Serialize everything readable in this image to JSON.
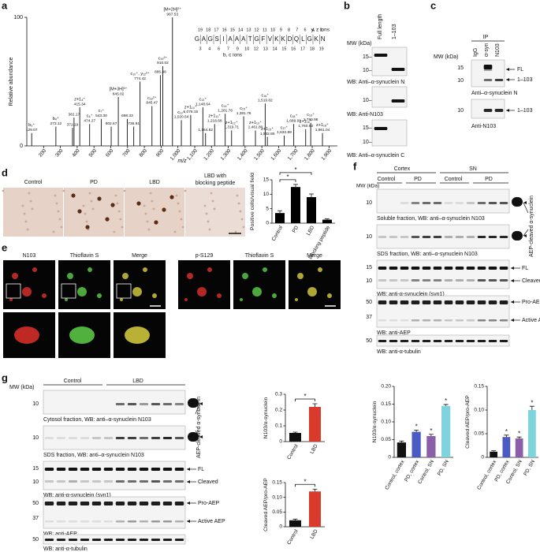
{
  "panel_labels": [
    "a",
    "b",
    "c",
    "d",
    "e",
    "f",
    "g"
  ],
  "a": {
    "ylabel": "Relative abundance",
    "xlabel": "m/z",
    "xlim": [
      100,
      1950
    ],
    "ylim": [
      0,
      100
    ],
    "yticks": [
      0,
      100
    ],
    "xticks": [
      200,
      300,
      400,
      500,
      600,
      700,
      800,
      900,
      {
        "value": 1000,
        "label": "1,000"
      },
      {
        "value": 1100,
        "label": "1,100"
      },
      {
        "value": 1200,
        "label": "1,200"
      },
      {
        "value": 1300,
        "label": "1,300"
      },
      {
        "value": 1400,
        "label": "1,400"
      },
      {
        "value": 1500,
        "label": "1,500"
      },
      {
        "value": 1600,
        "label": "1,600"
      },
      {
        "value": 1700,
        "label": "1,700"
      },
      {
        "value": 1800,
        "label": "1,800"
      },
      {
        "value": 1900,
        "label": "1,900"
      }
    ],
    "peaks": [
      {
        "mz": {
          "value": 129.07,
          "label": "129.07"
        },
        "abundance": 10,
        "ion": "b₃⁺"
      },
      {
        "mz": {
          "value": 273.12,
          "label": "273.12"
        },
        "abundance": 15,
        "ion": "b₄⁺"
      },
      {
        "mz": {
          "value": 372.19,
          "label": "372.19"
        },
        "abundance": 14
      },
      {
        "mz": {
          "value": 381.17,
          "label": "381.17"
        },
        "abundance": 22
      },
      {
        "mz": {
          "value": 415.34,
          "label": "415.34"
        },
        "abundance": 30,
        "ion": "z+1₄⁺"
      },
      {
        "mz": {
          "value": 474.27,
          "label": "474.27"
        },
        "abundance": 17,
        "ion": "c₆⁺"
      },
      {
        "mz": {
          "value": 543.3,
          "label": "543.30"
        },
        "abundance": 21,
        "ion": "c₇⁺"
      },
      {
        "mz": {
          "value": 602.67,
          "label": "602.67"
        },
        "abundance": 15
      },
      {
        "mz": {
          "value": 645.02,
          "label": "645.02"
        },
        "abundance": 38,
        "ion": "[M+3H]³⁺"
      },
      {
        "mz": {
          "value": 698.33,
          "label": "698.33"
        },
        "abundance": 21
      },
      {
        "mz": {
          "value": 736.91,
          "label": "736.91"
        },
        "abundance": 15
      },
      {
        "mz": {
          "value": 774.42,
          "label": "774.42"
        },
        "abundance": 50,
        "ion": "c₁₀⁺, y₁₂²⁺"
      },
      {
        "mz": {
          "value": 845.47,
          "label": "845.47"
        },
        "abundance": 31,
        "ion": "c₁₈²⁺"
      },
      {
        "mz": {
          "value": 895.48,
          "label": "895.48"
        },
        "abundance": 55
      },
      {
        "mz": {
          "value": 910.02,
          "label": "910.02"
        },
        "abundance": 62,
        "ion": "c₁₉²⁺"
      },
      {
        "mz": {
          "value": 967.53,
          "label": "967.53"
        },
        "abundance": 100,
        "ion": "[M+2H]²⁺"
      },
      {
        "mz": {
          "value": 1020.54,
          "label": "1,020.54"
        },
        "abundance": 20,
        "ion": "c₁₂⁺"
      },
      {
        "mz": {
          "value": 1076.15,
          "label": "1,076.15"
        },
        "abundance": 24,
        "ion": "z+1₁₀⁺"
      },
      {
        "mz": {
          "value": 1148.64,
          "label": "1,148.64"
        },
        "abundance": 30,
        "ion": "c₁₃⁺"
      },
      {
        "mz": {
          "value": 1164.62,
          "label": "1,164.62"
        },
        "abundance": 10
      },
      {
        "mz": {
          "value": 1218.68,
          "label": "1,218.68"
        },
        "abundance": 17,
        "ion": "z+1₁₁⁺"
      },
      {
        "mz": {
          "value": 1281.76,
          "label": "1,281.76"
        },
        "abundance": 25,
        "ion": "c₁₄⁺"
      },
      {
        "mz": {
          "value": 1319.71,
          "label": "1,319.71"
        },
        "abundance": 12,
        "ion": "z+1₁₂⁺"
      },
      {
        "mz": {
          "value": 1391.76,
          "label": "1,391.76"
        },
        "abundance": 23,
        "ion": "c₁₅⁺"
      },
      {
        "mz": {
          "value": 1461.8,
          "label": "1,461.80"
        },
        "abundance": 12,
        "ion": "z+1₁₃⁺"
      },
      {
        "mz": {
          "value": 1519.82,
          "label": "1,519.82"
        },
        "abundance": 33,
        "ion": "c₁₆⁺"
      },
      {
        "mz": {
          "value": 1532.86,
          "label": "1,532.86"
        },
        "abundance": 7,
        "ion": "z+1₁₅⁺"
      },
      {
        "mz": {
          "value": 1632.89,
          "label": "1,632.89"
        },
        "abundance": 8,
        "ion": "c₁₇⁺"
      },
      {
        "mz": {
          "value": 1689.91,
          "label": "1,689.91"
        },
        "abundance": 17,
        "ion": "c₁₈⁺"
      },
      {
        "mz": {
          "value": 1760.93,
          "label": "1,760.93"
        },
        "abundance": 13,
        "ion": "z+1₁₆⁺"
      },
      {
        "mz": {
          "value": 1790.98,
          "label": "1,790.98"
        },
        "abundance": 18,
        "ion": "c₁₉⁺"
      },
      {
        "mz": {
          "value": 1861.04,
          "label": "1,861.04"
        },
        "abundance": 10,
        "ion": "z+1₁₈⁺"
      }
    ],
    "sequence": {
      "top_numbers": [
        "19",
        "18",
        "17",
        "16",
        "15",
        "14",
        "13",
        "12",
        "11",
        "10",
        "9",
        "8",
        "7",
        "6",
        "4",
        "1"
      ],
      "residues": [
        "G",
        "A",
        "G",
        "S",
        "I",
        "A",
        "A",
        "A",
        "T",
        "G",
        "F",
        "V",
        "K",
        "K",
        "D",
        "Q",
        "L",
        "G",
        "K",
        "N"
      ],
      "bottom_numbers": [
        "3",
        "4",
        "6",
        "7",
        "9",
        "10",
        "12",
        "13",
        "14",
        "15",
        "16",
        "17",
        "18",
        "19"
      ],
      "top_label": "y, z ions",
      "bottom_label": "b, c ions"
    }
  },
  "b": {
    "mw": "MW (kDa)",
    "lanes": [
      "Full length",
      "1–103"
    ],
    "markers": [
      "15–",
      "10–",
      "10–",
      "15–",
      "10–"
    ],
    "captions": [
      "WB: Anti–α-synuclein N",
      "WB: Anti-N103",
      "WB: Anti–α-synuclein C"
    ]
  },
  "c": {
    "ip": "IP",
    "lanes": [
      "IgG",
      "α-syn",
      "N103"
    ],
    "mw": "MW (kDa)",
    "markers": [
      "15",
      "10",
      "10"
    ],
    "bands": [
      "FL",
      "1–103",
      "1–103"
    ],
    "captions": [
      "Anti–α-synuclein N",
      "Anti-N103"
    ]
  },
  "d": {
    "images": [
      "Control",
      "PD",
      "LBD",
      [
        "LBD with",
        "blocking peptide"
      ]
    ],
    "chart": {
      "type": "bar",
      "ylabel": "Positive cells/visual field",
      "categories": [
        "Control",
        "PD",
        "LBD",
        "Blocking peptide"
      ],
      "values": [
        3.5,
        12.5,
        9,
        1.2
      ],
      "errors": [
        0.8,
        0.9,
        1.1,
        0.3
      ],
      "colors": [
        "#000000",
        "#000000",
        "#000000",
        "#000000"
      ],
      "ylim": [
        0,
        15
      ],
      "yticks": [
        0,
        5,
        10,
        15
      ],
      "bracket_labels": [
        "*",
        "*"
      ]
    }
  },
  "e": {
    "images": [
      "N103",
      "Thioflavin S",
      "Merge",
      "p-S129",
      "Thioflavin S",
      "Merge"
    ]
  },
  "f": {
    "groups": [
      "Cortex",
      "SN"
    ],
    "subgroups": [
      "Control",
      "PD",
      "Control",
      "PD"
    ],
    "mw": "MW (kDa)",
    "markers": [
      "10",
      "10",
      "15",
      "10",
      "50",
      "37",
      "50"
    ],
    "captions": [
      "Soluble fraction, WB: anti–α-synuclein N103",
      "SDS fraction, WB: anti–α-synuclein N103",
      "WB: anti-α-synuclein (syn1)",
      "WB: anti-AEP",
      "WB: anti-α-tubulin"
    ],
    "cleaved_label": "AEP-cleaved α-synuclein",
    "bands": [
      "FL",
      "Cleaved",
      "Pro-AEP",
      "Active AEP"
    ],
    "charts": [
      {
        "type": "bar",
        "ylabel": "N103/α-synuclein",
        "categories": [
          "Control, cortex",
          "PD, cortex",
          "Control, SN",
          "PD, SN"
        ],
        "values": [
          0.042,
          0.072,
          0.06,
          0.145
        ],
        "errors": [
          0.004,
          0.005,
          0.005,
          0.004
        ],
        "colors": [
          "#111111",
          "#4a5bc4",
          "#8b5fa8",
          "#7fd3dc"
        ],
        "ylim": [
          0,
          0.2
        ],
        "yticks": [
          0,
          0.05,
          {
            "value": 0.1,
            "label": "0.10"
          },
          0.15,
          {
            "value": 0.2,
            "label": "0.20"
          }
        ],
        "significance": [
          null,
          "*",
          "*",
          "*"
        ]
      },
      {
        "type": "bar",
        "ylabel": "Cleaved AEP/pro-AEP",
        "categories": [
          "Control, cortex",
          "PD, cortex",
          "Control, SN",
          "PD, SN"
        ],
        "values": [
          0.012,
          0.043,
          0.04,
          0.1
        ],
        "errors": [
          0.002,
          0.004,
          0.003,
          0.008
        ],
        "colors": [
          "#111111",
          "#4a5bc4",
          "#8b5fa8",
          "#7fd3dc"
        ],
        "ylim": [
          0,
          0.15
        ],
        "yticks": [
          0,
          0.05,
          {
            "value": 0.1,
            "label": "0.10"
          },
          0.15
        ],
        "significance": [
          null,
          "*",
          "*",
          "*"
        ]
      }
    ]
  },
  "g": {
    "groups": [
      "Control",
      "LBD"
    ],
    "mw": "MW (kDa)",
    "markers": [
      "10",
      "10",
      "15",
      "10",
      "50",
      "37",
      "50"
    ],
    "captions": [
      "Cytosol fraction, WB: anti–α-synuclein N103",
      "SDS fraction, WB: anti–α-synuclein N103",
      "WB: anti-α-synuclein (syn1)",
      "WB: anti-AEP",
      "WB: anti-α-tubulin"
    ],
    "cleaved_label": "AEP-cleaved α-synuclein",
    "bands": [
      "FL",
      "Cleaved",
      "Pro-AEP",
      "Active AEP"
    ],
    "charts": [
      {
        "type": "bar",
        "ylabel": "N103/α-synuclein",
        "categories": [
          "Control",
          "LBD"
        ],
        "values": [
          0.055,
          0.22
        ],
        "errors": [
          0.005,
          0.02
        ],
        "colors": [
          "#111111",
          "#d93a2b"
        ],
        "ylim": [
          0,
          0.3
        ],
        "yticks": [
          0,
          0.1,
          0.2,
          0.3
        ],
        "bracket_labels": [
          "*"
        ]
      },
      {
        "type": "bar",
        "ylabel": "Cleaved AEP/pro-AEP",
        "categories": [
          "Control",
          "LBD"
        ],
        "values": [
          0.022,
          0.12
        ],
        "errors": [
          0.004,
          0.008
        ],
        "colors": [
          "#111111",
          "#d93a2b"
        ],
        "ylim": [
          0,
          0.15
        ],
        "yticks": [
          0,
          0.05,
          {
            "value": 0.1,
            "label": "0.10"
          },
          0.15
        ],
        "bracket_labels": [
          "*"
        ]
      }
    ]
  }
}
